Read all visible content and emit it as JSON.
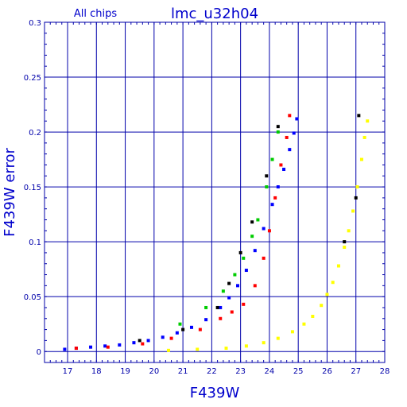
{
  "chart_data": {
    "type": "scatter",
    "title": "lmc_u32h04",
    "subtitle": "All chips",
    "xlabel": "F439W",
    "ylabel": "F439W error",
    "xlim": [
      16.2,
      28.0
    ],
    "ylim": [
      -0.01,
      0.3
    ],
    "x_ticks": [
      17,
      18,
      19,
      20,
      21,
      22,
      23,
      24,
      25,
      26,
      27,
      28
    ],
    "y_ticks": [
      0,
      0.05,
      0.1,
      0.15,
      0.2,
      0.25,
      0.3
    ],
    "y_tick_labels": [
      "0",
      "0.05",
      "0.1",
      "0.15",
      "0.2",
      "0.25",
      "0.3"
    ],
    "grid": true,
    "colors": {
      "axis": "#0000aa",
      "title": "#0000cc",
      "blue_series": "#0000ff",
      "red_series": "#ff0000",
      "green_series": "#00cc00",
      "black_series": "#000000",
      "yellow_series": "#ffff00"
    },
    "series": [
      {
        "color": "#0000ff",
        "x": [
          16.9,
          17.3,
          17.8,
          18.3,
          18.8,
          19.3,
          19.8,
          20.3,
          20.8,
          21.3,
          21.8,
          22.3,
          22.6,
          22.9,
          23.2,
          23.5,
          23.8,
          24.1,
          24.3,
          24.5,
          24.7,
          24.85,
          24.95
        ],
        "y": [
          0.002,
          0.003,
          0.004,
          0.005,
          0.006,
          0.008,
          0.01,
          0.013,
          0.017,
          0.022,
          0.029,
          0.04,
          0.049,
          0.06,
          0.074,
          0.092,
          0.112,
          0.134,
          0.15,
          0.166,
          0.184,
          0.199,
          0.212
        ]
      },
      {
        "color": "#ff0000",
        "x": [
          17.3,
          18.4,
          19.6,
          20.6,
          21.6,
          22.3,
          22.7,
          23.1,
          23.5,
          23.8,
          24.0,
          24.2,
          24.4,
          24.6,
          24.7
        ],
        "y": [
          0.003,
          0.004,
          0.007,
          0.012,
          0.02,
          0.03,
          0.036,
          0.043,
          0.06,
          0.085,
          0.11,
          0.14,
          0.17,
          0.195,
          0.215
        ]
      },
      {
        "color": "#00cc00",
        "x": [
          20.9,
          21.8,
          22.4,
          22.8,
          23.1,
          23.4,
          23.6,
          23.9,
          24.1,
          24.3
        ],
        "y": [
          0.025,
          0.04,
          0.055,
          0.07,
          0.085,
          0.105,
          0.12,
          0.15,
          0.175,
          0.2
        ]
      },
      {
        "color": "#000000",
        "x": [
          19.5,
          21.0,
          22.2,
          22.6,
          23.0,
          23.4,
          23.9,
          24.3,
          26.6,
          27.0,
          27.1
        ],
        "y": [
          0.01,
          0.02,
          0.04,
          0.062,
          0.09,
          0.118,
          0.16,
          0.205,
          0.1,
          0.14,
          0.215
        ]
      },
      {
        "color": "#ffff00",
        "x": [
          20.5,
          21.5,
          22.5,
          23.2,
          23.8,
          24.3,
          24.8,
          25.2,
          25.5,
          25.8,
          26.0,
          26.2,
          26.4,
          26.6,
          26.75,
          26.9,
          27.05,
          27.2,
          27.3,
          27.4
        ],
        "y": [
          0.001,
          0.002,
          0.003,
          0.005,
          0.008,
          0.012,
          0.018,
          0.025,
          0.032,
          0.042,
          0.052,
          0.063,
          0.078,
          0.095,
          0.11,
          0.128,
          0.15,
          0.175,
          0.195,
          0.21
        ]
      }
    ]
  }
}
